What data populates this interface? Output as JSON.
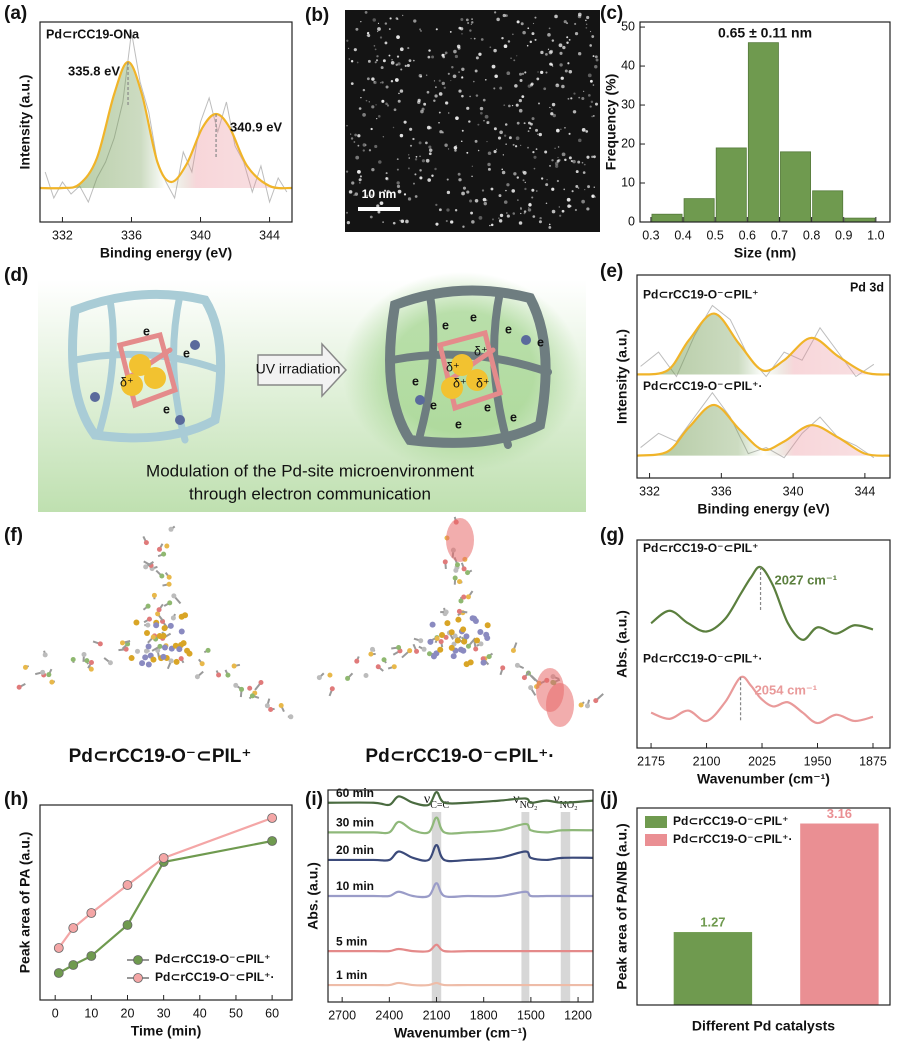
{
  "chart_data": [
    {
      "type": "line",
      "panel_label": "(a)",
      "smooth": true,
      "inner_title": "Pd⊂rCC19-ONa",
      "inner_title_position": "upper left",
      "x_label": "Binding energy (eV)",
      "y_label": "Intensity (a.u.)",
      "xlim": [
        330.7,
        345.3
      ],
      "ylim": [
        0,
        1
      ],
      "xticks": [
        332,
        336,
        340,
        344
      ],
      "series": [
        {
          "style": "raw",
          "color": "#bdbdbd",
          "x": [
            331,
            331.5,
            332,
            332.5,
            333,
            333.5,
            334,
            334.5,
            335,
            335.5,
            336,
            336.5,
            337,
            337.5,
            338,
            338.5,
            339,
            339.5,
            340,
            340.5,
            341,
            341.5,
            342,
            342.5,
            343,
            343.5,
            344,
            344.5,
            345
          ],
          "values": [
            0.25,
            0.12,
            0.2,
            0.14,
            0.18,
            0.1,
            0.22,
            0.3,
            0.42,
            0.6,
            0.95,
            0.7,
            0.55,
            0.3,
            0.2,
            0.12,
            0.35,
            0.25,
            0.5,
            0.62,
            0.45,
            0.6,
            0.38,
            0.3,
            0.15,
            0.28,
            0.1,
            0.22,
            0.15
          ]
        },
        {
          "color": "#f0b429",
          "fill_colors": [
            "#6f9a4f",
            "#e98a94"
          ],
          "x": [
            330.7,
            332,
            333,
            334,
            335,
            335.8,
            336.6,
            337.5,
            338.3,
            339.2,
            340.1,
            340.9,
            341.7,
            342.7,
            344,
            345.3
          ],
          "values": [
            0.17,
            0.17,
            0.19,
            0.32,
            0.64,
            0.8,
            0.64,
            0.3,
            0.2,
            0.29,
            0.47,
            0.54,
            0.47,
            0.28,
            0.18,
            0.17
          ]
        }
      ],
      "annotations": [
        {
          "x": 335.8,
          "label": "335.8 eV"
        },
        {
          "x": 340.9,
          "label": "340.9 eV"
        }
      ]
    },
    {
      "type": "histogram",
      "panel_label": "(c)",
      "annotation": "0.65 ± 0.11 nm",
      "x_label": "Size (nm)",
      "y_label": "Frequency (%)",
      "bins": [
        0.3,
        0.4,
        0.5,
        0.6,
        0.7,
        0.8,
        0.9,
        1
      ],
      "values": [
        2,
        6,
        19,
        46,
        18,
        8,
        1
      ],
      "color": "#6f9a4f",
      "xlim": [
        0.266,
        1.044
      ],
      "ylim": [
        0,
        51.3
      ],
      "xticks": [
        0.3,
        0.4,
        0.5,
        0.6,
        0.7,
        0.8,
        0.9,
        {
          "value": 1,
          "label": "1.0"
        }
      ],
      "yticks": [
        0,
        10,
        20,
        30,
        40,
        50
      ]
    },
    {
      "type": "line",
      "panel_label": "(e)",
      "smooth": true,
      "legend": "inline",
      "inner_title": "Pd 3d",
      "inner_title_position": "upper right",
      "x_label": "Binding energy (eV)",
      "y_label": "Intensity (a.u.)",
      "xlim": [
        331.3,
        345.4
      ],
      "ylim": [
        0,
        1
      ],
      "xticks": [
        332,
        336,
        340,
        344
      ],
      "series": [
        {
          "style": "raw",
          "color": "#bdbdbd",
          "x": [
            331.5,
            332.5,
            333.5,
            334.5,
            335.5,
            336.5,
            337.5,
            338.5,
            339.5,
            340.5,
            341.5,
            342.5,
            343.5,
            344.5
          ],
          "values": [
            0.55,
            0.62,
            0.5,
            0.7,
            0.85,
            0.78,
            0.6,
            0.5,
            0.62,
            0.58,
            0.74,
            0.62,
            0.5,
            0.56
          ]
        },
        {
          "name": "Pd⊂rCC19-O⁻⊂PIL⁺",
          "color": "#f0b429",
          "fill_colors": [
            "#6f9a4f",
            "#e98a94"
          ],
          "x": [
            331.3,
            333,
            334.2,
            335.6,
            337,
            338.3,
            339.5,
            341,
            342.5,
            344,
            345.4
          ],
          "values": [
            0.51,
            0.53,
            0.68,
            0.81,
            0.66,
            0.53,
            0.58,
            0.69,
            0.6,
            0.52,
            0.51
          ]
        },
        {
          "style": "raw",
          "color": "#bdbdbd",
          "x": [
            331.5,
            332.5,
            333.5,
            334.5,
            335.5,
            336.5,
            337.5,
            338.5,
            339.5,
            340.5,
            341.5,
            342.5,
            343.5,
            344.5
          ],
          "values": [
            0.15,
            0.22,
            0.18,
            0.3,
            0.42,
            0.3,
            0.12,
            0.15,
            0.1,
            0.22,
            0.3,
            0.2,
            0.16,
            0.1
          ]
        },
        {
          "name": "Pd⊂rCC19-O⁻⊂PIL⁺·",
          "color": "#f0b429",
          "fill_colors": [
            "#6f9a4f",
            "#e98a94"
          ],
          "x": [
            331.3,
            333,
            334.2,
            335.6,
            337,
            338.3,
            339.5,
            341,
            342.5,
            344,
            345.4
          ],
          "values": [
            0.11,
            0.13,
            0.25,
            0.36,
            0.24,
            0.14,
            0.18,
            0.26,
            0.2,
            0.12,
            0.11
          ]
        }
      ]
    },
    {
      "type": "line",
      "panel_label": "(g)",
      "smooth": true,
      "legend": "inline",
      "x_label": "Wavenumber (cm⁻¹)",
      "y_label": "Abs. (a.u.)",
      "xlim": [
        2194,
        1852
      ],
      "ylim": [
        0,
        1
      ],
      "xticks": [
        2175,
        2100,
        2025,
        1950,
        1875
      ],
      "x": [
        2175,
        2150,
        2125,
        2100,
        2075,
        2054,
        2040,
        2027,
        2010,
        1990,
        1970,
        1950,
        1925,
        1900,
        1875
      ],
      "series": [
        {
          "name": "Pd⊂rCC19-O⁻⊂PIL⁺",
          "color": "#5b7f3e",
          "values": [
            0.6,
            0.66,
            0.6,
            0.56,
            0.62,
            0.74,
            0.82,
            0.87,
            0.78,
            0.6,
            0.52,
            0.58,
            0.55,
            0.59,
            0.57
          ]
        },
        {
          "name": "Pd⊂rCC19-O⁻⊂PIL⁺·",
          "color": "#e99a9a",
          "values": [
            0.17,
            0.14,
            0.18,
            0.13,
            0.22,
            0.34,
            0.3,
            0.24,
            0.2,
            0.22,
            0.17,
            0.12,
            0.16,
            0.13,
            0.15
          ]
        }
      ],
      "annotations": [
        {
          "x": 2027,
          "label": "2027 cm⁻¹"
        },
        {
          "x": 2054,
          "label": "2054 cm⁻¹"
        }
      ]
    },
    {
      "type": "line",
      "panel_label": "(h)",
      "markers": true,
      "legend": "lower right",
      "x_label": "Time (min)",
      "y_label": "Peak area of PA (a.u.)",
      "xlim": [
        -4.2,
        65.5
      ],
      "ylim": [
        -0.5,
        9.25
      ],
      "xticks": [
        0,
        10,
        20,
        30,
        40,
        50,
        60
      ],
      "x": [
        1,
        5,
        10,
        20,
        30,
        60
      ],
      "series": [
        {
          "name": "Pd⊂rCC19-O⁻⊂PIL⁺",
          "color": "#6f9a4f",
          "values": [
            0.85,
            1.25,
            1.7,
            3.25,
            6.4,
            7.45
          ]
        },
        {
          "name": "Pd⊂rCC19-O⁻⊂PIL⁺·",
          "color": "#f4a6a6",
          "values": [
            2.1,
            3.1,
            3.85,
            5.25,
            6.6,
            8.6
          ]
        }
      ]
    },
    {
      "type": "line",
      "panel_label": "(i)",
      "smooth": true,
      "legend": "inline-left",
      "x_label": "Wavenumber (cm⁻¹)",
      "y_label": "Abs. (a.u.)",
      "xlim": [
        2790,
        1105
      ],
      "ylim": [
        0,
        1
      ],
      "xticks": [
        2700,
        2400,
        2100,
        1800,
        1500,
        1200
      ],
      "x": [
        2790,
        2500,
        2400,
        2340,
        2250,
        2150,
        2100,
        2050,
        1900,
        1700,
        1535,
        1500,
        1400,
        1300,
        1105
      ],
      "bands": [
        {
          "x": [
            2130,
            2070
          ],
          "symbol": "ν",
          "subscript": "C=C"
        },
        {
          "x": [
            1560,
            1510
          ],
          "symbol": "ν",
          "subscript": "NO₂"
        },
        {
          "x": [
            1310,
            1250
          ],
          "symbol": "ν",
          "subscript": "NO₂"
        }
      ],
      "series": [
        {
          "name": "60 min",
          "color": "#4a6b40",
          "values": [
            0.94,
            0.94,
            0.93,
            0.97,
            0.94,
            0.93,
            0.99,
            0.94,
            0.94,
            0.95,
            0.96,
            0.94,
            0.95,
            0.94,
            0.95
          ]
        },
        {
          "name": "30 min",
          "color": "#8fb87a",
          "values": [
            0.8,
            0.8,
            0.8,
            0.85,
            0.81,
            0.8,
            0.87,
            0.8,
            0.8,
            0.81,
            0.84,
            0.81,
            0.8,
            0.81,
            0.81
          ]
        },
        {
          "name": "20 min",
          "color": "#3b4a7a",
          "values": [
            0.67,
            0.67,
            0.67,
            0.71,
            0.68,
            0.67,
            0.74,
            0.67,
            0.67,
            0.68,
            0.71,
            0.68,
            0.67,
            0.68,
            0.68
          ]
        },
        {
          "name": "10 min",
          "color": "#9a9cc8",
          "values": [
            0.5,
            0.5,
            0.5,
            0.52,
            0.5,
            0.5,
            0.56,
            0.5,
            0.5,
            0.5,
            0.52,
            0.5,
            0.5,
            0.5,
            0.5
          ]
        },
        {
          "name": "5 min",
          "color": "#e48a8a",
          "values": [
            0.24,
            0.24,
            0.24,
            0.25,
            0.24,
            0.24,
            0.27,
            0.24,
            0.24,
            0.24,
            0.24,
            0.24,
            0.24,
            0.24,
            0.24
          ]
        },
        {
          "name": "1 min",
          "color": "#eebca8",
          "values": [
            0.08,
            0.08,
            0.08,
            0.09,
            0.08,
            0.08,
            0.09,
            0.08,
            0.08,
            0.08,
            0.08,
            0.08,
            0.08,
            0.08,
            0.08
          ]
        }
      ]
    },
    {
      "type": "bar",
      "panel_label": "(j)",
      "legend": "upper left",
      "x_label": "Different Pd catalysts",
      "y_label": "Peak area of PA/NB (a.u.)",
      "ylim": [
        0,
        3.43
      ],
      "categories": [
        null
      ],
      "series": [
        {
          "name": "Pd⊂rCC19-O⁻⊂PIL⁺",
          "color": "#6f9a4f",
          "values": [
            1.27
          ]
        },
        {
          "name": "Pd⊂rCC19-O⁻⊂PIL⁺·",
          "color": "#ea8f93",
          "values": [
            3.16
          ]
        }
      ]
    }
  ],
  "panel_b": {
    "panel_label": "(b)",
    "scale_bar": "10 nm"
  },
  "panel_d": {
    "panel_label": "(d)",
    "arrow_label": "UV irradiation",
    "caption": [
      "Modulation of the Pd-site microenvironment",
      "through electron communication"
    ],
    "electron": "e",
    "charge": "δ⁺"
  },
  "panel_f": {
    "panel_label": "(f)",
    "labels": [
      "Pd⊂rCC19-O⁻⊂PIL⁺",
      "Pd⊂rCC19-O⁻⊂PIL⁺·"
    ]
  }
}
